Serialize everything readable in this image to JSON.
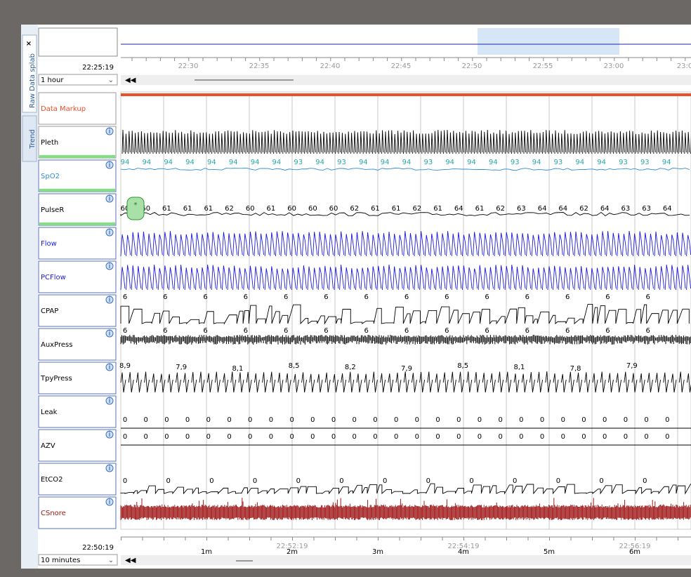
{
  "tabs": [
    "Raw Data splab",
    "Trend"
  ],
  "overview": {
    "time": "22:25:19",
    "span": "1 hour",
    "ticks": [
      "22:30",
      "22:35",
      "22:40",
      "22:45",
      "22:50",
      "22:55",
      "23:00",
      "23:0"
    ]
  },
  "channels": [
    {
      "name": "Data Markup",
      "color": "#e8502a"
    },
    {
      "name": "Pleth",
      "color": "#000000"
    },
    {
      "name": "SpO2",
      "color": "#2e8bd6",
      "labels": [
        "94",
        "94",
        "94",
        "94",
        "94",
        "94",
        "94",
        "94",
        "93",
        "94",
        "93",
        "94",
        "94",
        "94",
        "93",
        "94",
        "94",
        "94",
        "93",
        "94",
        "93",
        "94",
        "94",
        "93",
        "93",
        "94"
      ]
    },
    {
      "name": "PulseR",
      "color": "#000000",
      "labels": [
        "60",
        "60",
        "61",
        "61",
        "61",
        "62",
        "60",
        "61",
        "60",
        "60",
        "60",
        "62",
        "61",
        "61",
        "62",
        "61",
        "64",
        "61",
        "62",
        "63",
        "64",
        "64",
        "62",
        "64",
        "63",
        "63",
        "64"
      ]
    },
    {
      "name": "Flow",
      "color": "#1a1adf"
    },
    {
      "name": "PCFlow",
      "color": "#1a1adf"
    },
    {
      "name": "CPAP",
      "color": "#000000",
      "labels": [
        "6",
        "6",
        "6",
        "6",
        "6",
        "6",
        "6",
        "6",
        "6",
        "6",
        "6",
        "6",
        "6",
        "6"
      ]
    },
    {
      "name": "AuxPress",
      "color": "#000000",
      "labels": [
        "6",
        "6",
        "6",
        "6",
        "6",
        "6",
        "6",
        "6",
        "6",
        "6",
        "6",
        "6",
        "6",
        "6"
      ]
    },
    {
      "name": "TpyPress",
      "color": "#000000",
      "labels": [
        "8,9",
        "7,9",
        "8,1",
        "8,5",
        "8,2",
        "7,9",
        "8,5",
        "8,1",
        "7,8",
        "7,9"
      ]
    },
    {
      "name": "Leak",
      "color": "#000000",
      "labels": [
        "0",
        "0",
        "0",
        "0",
        "0",
        "0",
        "0",
        "0",
        "0",
        "0",
        "0",
        "0",
        "0",
        "0",
        "0",
        "0",
        "0",
        "0",
        "0",
        "0",
        "0",
        "0",
        "0",
        "0",
        "0",
        "0",
        "0"
      ]
    },
    {
      "name": "AZV",
      "color": "#000000",
      "labels": [
        "0",
        "0",
        "0",
        "0",
        "0",
        "0",
        "0",
        "0",
        "0",
        "0",
        "0",
        "0",
        "0",
        "0",
        "0",
        "0",
        "0",
        "0",
        "0",
        "0",
        "0",
        "0",
        "0",
        "0",
        "0",
        "0",
        "0"
      ]
    },
    {
      "name": "EtCO2",
      "color": "#000000",
      "labels": [
        "0",
        "0",
        "0",
        "0",
        "0",
        "0",
        "0",
        "0",
        "0",
        "0",
        "0",
        "0",
        "0"
      ]
    },
    {
      "name": "CSnore",
      "color": "#a01818"
    }
  ],
  "detail": {
    "time": "22:50:19",
    "span": "10 minutes",
    "ticks": [
      {
        "label": "1m"
      },
      {
        "time": "22:52:19",
        "label": "2m"
      },
      {
        "label": "3m"
      },
      {
        "time": "22:54:19",
        "label": "4m"
      },
      {
        "label": "5m"
      },
      {
        "time": "22:56:19",
        "label": "6m"
      }
    ]
  }
}
